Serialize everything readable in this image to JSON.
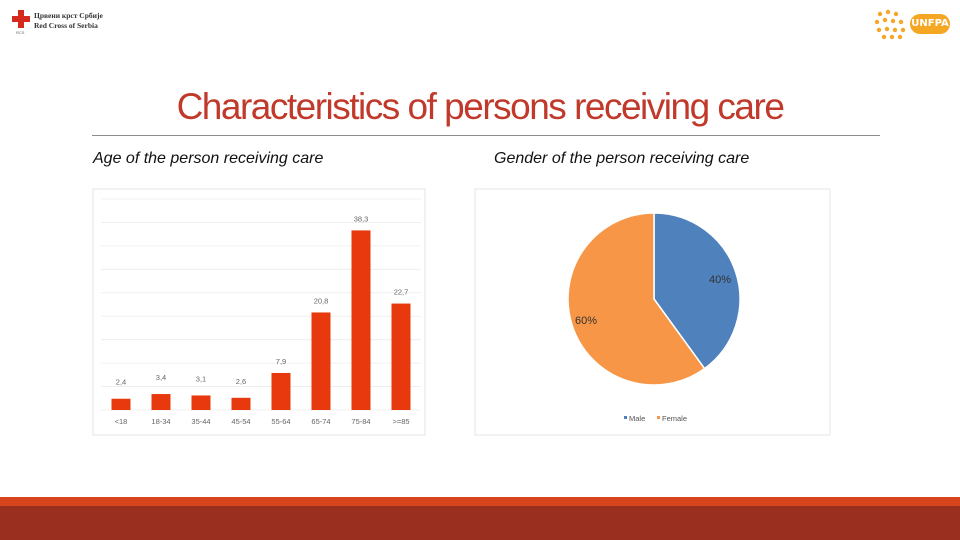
{
  "logos": {
    "left": {
      "line1": "Црвени крст Србије",
      "line2": "Red Cross of Serbia",
      "sub": "RCS"
    },
    "right": {
      "wordmark": "UNFPA"
    }
  },
  "title": "Characteristics of persons receiving care",
  "colors": {
    "bar": "#e8380d",
    "male": "#4f81bd",
    "female": "#f79646",
    "accent": "#c0392b"
  },
  "chart_data": [
    {
      "type": "bar",
      "title": "Age of the person receiving care",
      "categories": [
        "<18",
        "18-34",
        "35-44",
        "45-54",
        "55-64",
        "65-74",
        "75-84",
        ">=85"
      ],
      "values": [
        2.4,
        3.4,
        3.1,
        2.6,
        7.9,
        20.8,
        38.3,
        22.7
      ],
      "value_labels": [
        "2,4",
        "3,4",
        "3,1",
        "2,6",
        "7,9",
        "20,8",
        "38,3",
        "22,7"
      ],
      "ylim": [
        0,
        45
      ],
      "grid": true
    },
    {
      "type": "pie",
      "title": "Gender of the person receiving care",
      "slices": [
        {
          "name": "Male",
          "value": 40,
          "label": "40%"
        },
        {
          "name": "Female",
          "value": 60,
          "label": "60%"
        }
      ],
      "legend": "bottom"
    }
  ]
}
